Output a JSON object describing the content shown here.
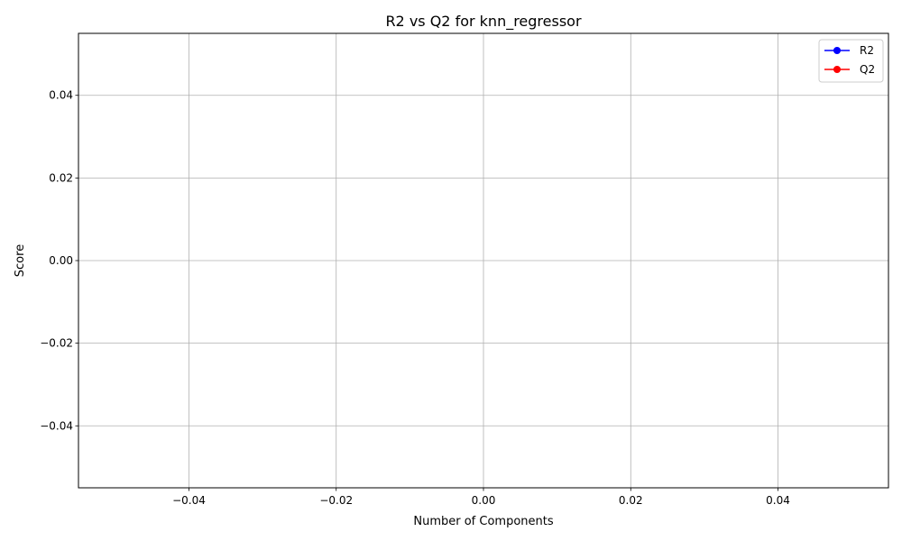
{
  "chart_data": {
    "type": "line",
    "title": "R2 vs Q2 for knn_regressor",
    "xlabel": "Number of Components",
    "ylabel": "Score",
    "xlim": [
      -0.055,
      0.055
    ],
    "ylim": [
      -0.055,
      0.055
    ],
    "x_ticks": [
      -0.04,
      -0.02,
      0.0,
      0.02,
      0.04
    ],
    "y_ticks": [
      -0.04,
      -0.02,
      0.0,
      0.02,
      0.04
    ],
    "x_tick_labels": [
      "−0.04",
      "−0.02",
      "0.00",
      "0.02",
      "0.04"
    ],
    "y_tick_labels": [
      "−0.04",
      "−0.02",
      "0.00",
      "0.02",
      "0.04"
    ],
    "grid": true,
    "legend_position": "top-right",
    "series": [
      {
        "name": "R2",
        "color": "#0000ff",
        "marker": "circle",
        "x": [],
        "y": []
      },
      {
        "name": "Q2",
        "color": "#ff0000",
        "marker": "circle",
        "x": [],
        "y": []
      }
    ]
  }
}
